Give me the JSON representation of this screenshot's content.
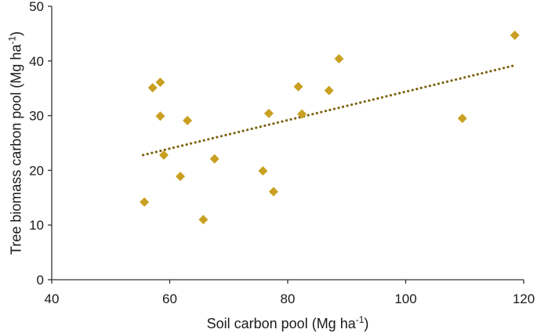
{
  "chart_data": {
    "type": "scatter",
    "xlabel": "Soil carbon pool (Mg ha",
    "xlabel_sup": "-1",
    "xlabel_end": ")",
    "ylabel": "Tree biomass carbon pool (Mg ha",
    "ylabel_sup": "-1",
    "ylabel_end": ")",
    "xlim": [
      40,
      120
    ],
    "ylim": [
      0,
      50
    ],
    "xticks": [
      "40",
      "60",
      "80",
      "100",
      "120"
    ],
    "yticks": [
      "0",
      "10",
      "20",
      "30",
      "40",
      "50"
    ],
    "grid": false,
    "legend": "none",
    "marker": "diamond",
    "marker_color": "#c9a021",
    "trendline_color": "#7d6410",
    "trendline": {
      "x": [
        55.5,
        118.5
      ],
      "y": [
        22.8,
        39.2
      ]
    },
    "points": [
      {
        "x": 55.7,
        "y": 14.2
      },
      {
        "x": 57.1,
        "y": 35.1
      },
      {
        "x": 58.4,
        "y": 36.1
      },
      {
        "x": 58.4,
        "y": 29.9
      },
      {
        "x": 59.0,
        "y": 22.8
      },
      {
        "x": 61.8,
        "y": 18.9
      },
      {
        "x": 63.0,
        "y": 29.1
      },
      {
        "x": 65.7,
        "y": 11.0
      },
      {
        "x": 67.6,
        "y": 22.1
      },
      {
        "x": 75.8,
        "y": 19.9
      },
      {
        "x": 76.8,
        "y": 30.4
      },
      {
        "x": 77.6,
        "y": 16.1
      },
      {
        "x": 81.8,
        "y": 35.3
      },
      {
        "x": 82.4,
        "y": 30.3
      },
      {
        "x": 87.0,
        "y": 34.6
      },
      {
        "x": 88.7,
        "y": 40.4
      },
      {
        "x": 109.6,
        "y": 29.5
      },
      {
        "x": 118.5,
        "y": 44.7
      }
    ]
  }
}
